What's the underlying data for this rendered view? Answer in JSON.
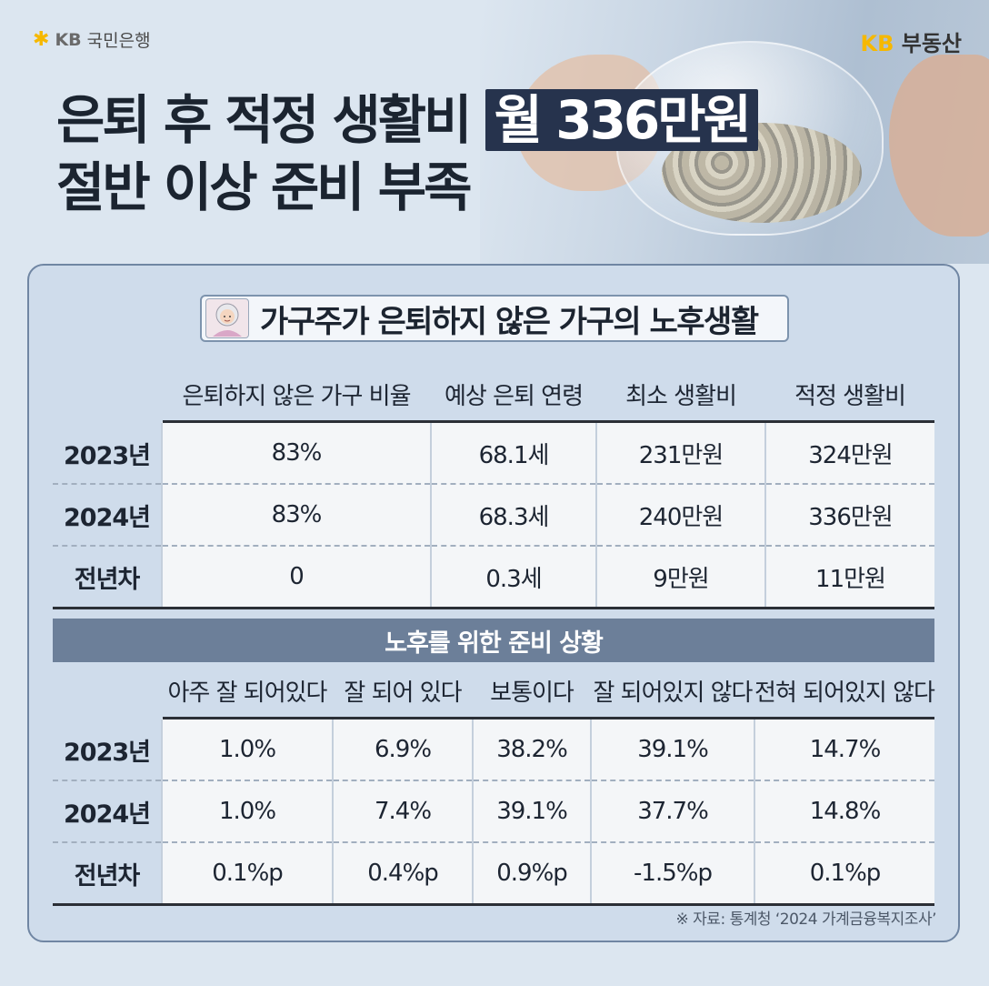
{
  "brand": {
    "bank_mark": "KB",
    "bank_name": "국민은행",
    "realestate_mark": "KB",
    "realestate_name": "부동산"
  },
  "headline": {
    "line1_pre": "은퇴 후 적정 생활비",
    "line1_highlight": "월 336만원",
    "line2": "절반 이상 준비 부족"
  },
  "section1": {
    "title": "가구주가 은퇴하지 않은 가구의 노후생활",
    "icon": "elderly-woman-icon",
    "columns": [
      "은퇴하지 않은 가구 비율",
      "예상 은퇴 연령",
      "최소 생활비",
      "적정 생활비"
    ],
    "rows": [
      {
        "label": "2023년",
        "cells": [
          "83%",
          "68.1세",
          "231만원",
          "324만원"
        ]
      },
      {
        "label": "2024년",
        "cells": [
          "83%",
          "68.3세",
          "240만원",
          "336만원"
        ]
      },
      {
        "label": "전년차",
        "cells": [
          "0",
          "0.3세",
          "9만원",
          "11만원"
        ]
      }
    ]
  },
  "section2": {
    "title": "노후를 위한 준비 상황",
    "columns": [
      "아주 잘 되어있다",
      "잘 되어 있다",
      "보통이다",
      "잘 되어있지 않다",
      "전혀 되어있지 않다"
    ],
    "rows": [
      {
        "label": "2023년",
        "cells": [
          "1.0%",
          "6.9%",
          "38.2%",
          "39.1%",
          "14.7%"
        ]
      },
      {
        "label": "2024년",
        "cells": [
          "1.0%",
          "7.4%",
          "39.1%",
          "37.7%",
          "14.8%"
        ]
      },
      {
        "label": "전년차",
        "cells": [
          "0.1%p",
          "0.4%p",
          "0.9%p",
          "-1.5%p",
          "0.1%p"
        ]
      }
    ]
  },
  "source": "※ 자료: 통계청 ‘2024 가계금융복지조사’",
  "colors": {
    "background": "#dce6f0",
    "highlight": "#26334d",
    "bar": "#6c7f99",
    "kb_yellow": "#f6b800"
  }
}
